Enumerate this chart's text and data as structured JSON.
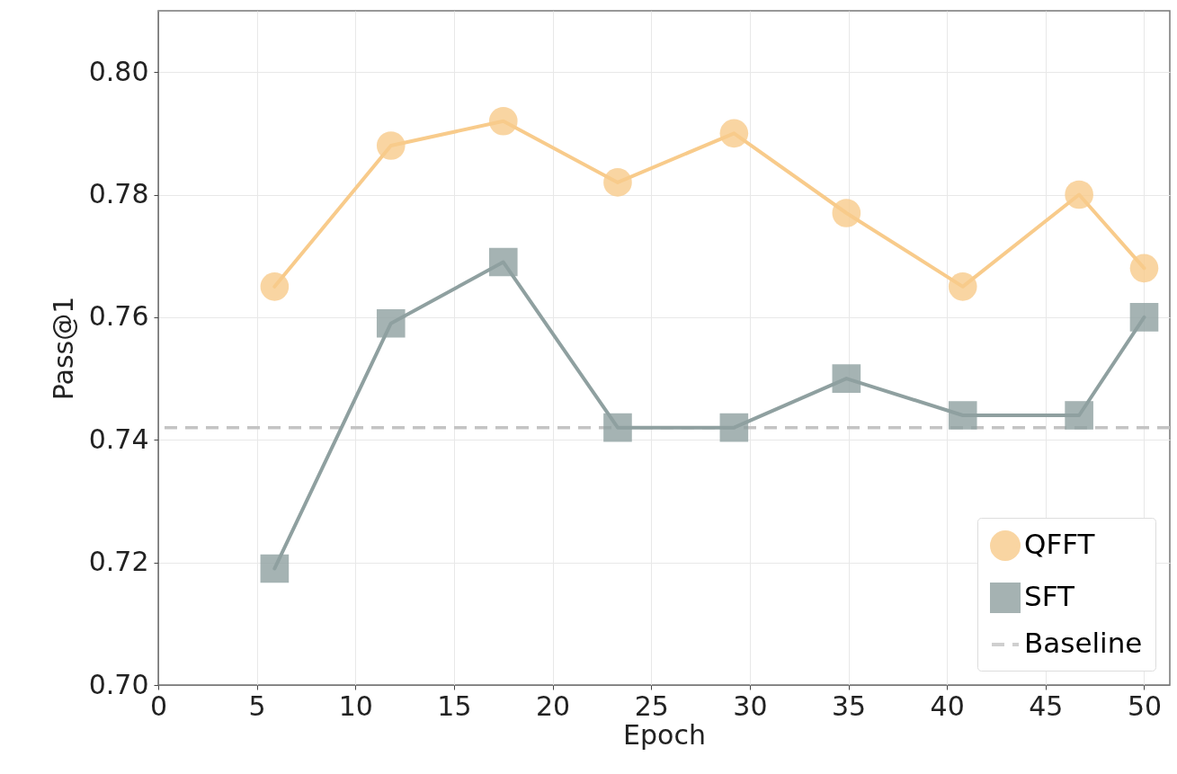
{
  "chart_data": {
    "type": "line",
    "xlabel": "Epoch",
    "ylabel": "Pass@1",
    "xlim": [
      0,
      51.3
    ],
    "xticks": [
      0,
      5,
      10,
      15,
      20,
      25,
      30,
      35,
      40,
      45,
      50
    ],
    "ylim": [
      0.7,
      0.81
    ],
    "yticks": [
      {
        "value": 0.7,
        "label": "0.70"
      },
      0.72,
      0.74,
      0.76,
      0.78,
      {
        "value": 0.8,
        "label": "0.80"
      }
    ],
    "x": [
      5.9,
      11.8,
      17.5,
      23.3,
      29.2,
      34.9,
      40.8,
      46.7,
      50.0
    ],
    "series": [
      {
        "name": "QFFT",
        "color": "#f8cb8b",
        "marker": "circle",
        "values": [
          0.765,
          0.788,
          0.792,
          0.782,
          0.79,
          0.777,
          0.765,
          0.78,
          0.768
        ]
      },
      {
        "name": "SFT",
        "color": "#8fa0a0",
        "marker": "square",
        "values": [
          0.719,
          0.759,
          0.769,
          0.742,
          0.742,
          0.75,
          0.744,
          0.744,
          0.76
        ]
      }
    ],
    "ref_lines": [
      {
        "axis": "y",
        "value": 0.742,
        "label": "Baseline",
        "color": "#c4c4c4",
        "line_style": "dashed"
      }
    ],
    "grid": true,
    "legend": "bottom right",
    "line_style": "solid"
  }
}
